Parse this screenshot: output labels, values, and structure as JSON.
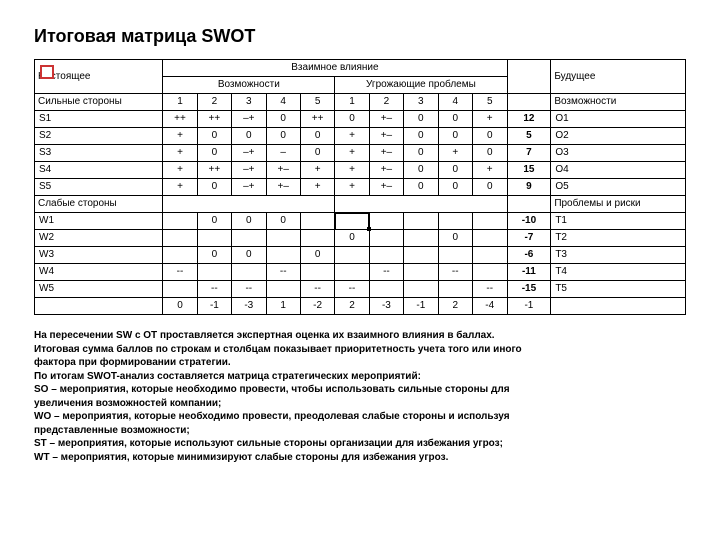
{
  "title": "Итоговая матрица SWOT",
  "headers": {
    "present": "Настоящее",
    "mutual": "Взаимное влияние",
    "future": "Будущее",
    "opp": "Возможности",
    "threat": "Угрожающие проблемы",
    "strengths": "Сильные стороны",
    "weaknesses": "Слабые стороны",
    "right_opp": "Возможности",
    "right_risk": "Проблемы и риски"
  },
  "col_nums_left": [
    "1",
    "2",
    "3",
    "4",
    "5"
  ],
  "col_nums_right": [
    "1",
    "2",
    "3",
    "4",
    "5"
  ],
  "s_rows": [
    {
      "name": "S1",
      "l": [
        "++",
        "++",
        "–+",
        "0",
        "++"
      ],
      "r": [
        "0",
        "+–",
        "0",
        "0",
        "+"
      ],
      "sum": "12",
      "o": "O1"
    },
    {
      "name": "S2",
      "l": [
        "+",
        "0",
        "0",
        "0",
        "0"
      ],
      "r": [
        "+",
        "+–",
        "0",
        "0",
        "0"
      ],
      "sum": "5",
      "o": "O2"
    },
    {
      "name": "S3",
      "l": [
        "+",
        "0",
        "–+",
        "–",
        "0"
      ],
      "r": [
        "+",
        "+–",
        "0",
        "+",
        "0"
      ],
      "sum": "7",
      "o": "O3"
    },
    {
      "name": "S4",
      "l": [
        "+",
        "++",
        "–+",
        "+–",
        "+"
      ],
      "r": [
        "+",
        "+–",
        "0",
        "0",
        "+"
      ],
      "sum": "15",
      "o": "O4"
    },
    {
      "name": "S5",
      "l": [
        "+",
        "0",
        "–+",
        "+–",
        "+"
      ],
      "r": [
        "+",
        "+–",
        "0",
        "0",
        "0"
      ],
      "sum": "9",
      "o": "O5"
    }
  ],
  "w_rows": [
    {
      "name": "W1",
      "l": [
        "",
        "0",
        "0",
        "0",
        ""
      ],
      "r": [
        "",
        "",
        "",
        "",
        ""
      ],
      "sum": "-10",
      "t": "T1"
    },
    {
      "name": "W2",
      "l": [
        "",
        "",
        "",
        "",
        ""
      ],
      "r": [
        "0",
        "",
        "",
        "0",
        ""
      ],
      "sum": "-7",
      "t": "T2"
    },
    {
      "name": "W3",
      "l": [
        "",
        "0",
        "0",
        "",
        "0"
      ],
      "r": [
        "",
        "",
        "",
        "",
        ""
      ],
      "sum": "-6",
      "t": "T3"
    },
    {
      "name": "W4",
      "l": [
        "--",
        "",
        "",
        "--",
        ""
      ],
      "r": [
        "",
        "--",
        "",
        "--",
        ""
      ],
      "sum": "-11",
      "t": "T4"
    },
    {
      "name": "W5",
      "l": [
        "",
        "--",
        "--",
        "",
        "--"
      ],
      "r": [
        "--",
        "",
        "",
        "",
        "--"
      ],
      "sum": "-15",
      "t": "T5"
    }
  ],
  "col_sums": {
    "l": [
      "0",
      "-1",
      "-3",
      "1",
      "-2"
    ],
    "r": [
      "2",
      "-3",
      "-1",
      "2",
      "-4"
    ],
    "total": "-1"
  },
  "explain": [
    "На пересечении SW с OT проставляется экспертная оценка их взаимного влияния в баллах.",
    "Итоговая сумма баллов по строкам и столбцам показывает приоритетность учета того или иного",
    "фактора при формировании стратегии.",
    "По итогам SWOT-анализ составляется матрица стратегических мероприятий:",
    "SO – мероприятия, которые необходимо провести, чтобы использовать сильные стороны для",
    "увеличения возможностей компании;",
    "WO – мероприятия, которые необходимо провести, преодолевая слабые стороны и используя",
    "представленные возможности;",
    "ST – мероприятия, которые используют сильные стороны организации для избежания угроз;",
    "WT – мероприятия, которые минимизируют слабые стороны для избежания угроз."
  ]
}
